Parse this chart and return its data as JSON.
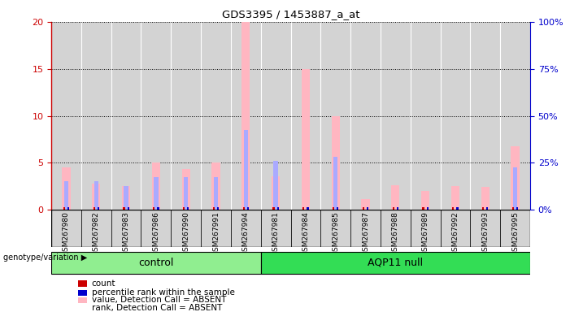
{
  "title": "GDS3395 / 1453887_a_at",
  "samples": [
    "GSM267980",
    "GSM267982",
    "GSM267983",
    "GSM267986",
    "GSM267990",
    "GSM267991",
    "GSM267994",
    "GSM267981",
    "GSM267984",
    "GSM267985",
    "GSM267987",
    "GSM267988",
    "GSM267989",
    "GSM267992",
    "GSM267993",
    "GSM267995"
  ],
  "value_pink": [
    4.5,
    2.8,
    2.5,
    5.0,
    4.3,
    5.0,
    20.0,
    3.6,
    15.0,
    10.0,
    1.1,
    2.6,
    2.0,
    2.5,
    2.4,
    6.8
  ],
  "rank_lblue_right": [
    15.0,
    15.0,
    12.5,
    17.5,
    17.5,
    17.5,
    42.5,
    26.0,
    0.0,
    28.0,
    0.0,
    0.0,
    0.0,
    0.0,
    0.0,
    22.5
  ],
  "count_red": [
    0.3,
    0.3,
    0.3,
    0.3,
    0.3,
    0.3,
    0.3,
    0.3,
    0.3,
    0.3,
    0.3,
    0.3,
    0.3,
    0.3,
    0.3,
    0.3
  ],
  "rank_blue": [
    0.3,
    0.3,
    0.3,
    0.3,
    0.3,
    0.3,
    0.3,
    0.3,
    0.3,
    0.3,
    0.3,
    0.3,
    0.3,
    0.3,
    0.3,
    0.3
  ],
  "ylim_left": [
    0,
    20
  ],
  "ylim_right": [
    0,
    100
  ],
  "yticks_left": [
    0,
    5,
    10,
    15,
    20
  ],
  "yticks_right": [
    0,
    25,
    50,
    75,
    100
  ],
  "control_count": 7,
  "aqp11_count": 9,
  "bar_bg_color": "#d3d3d3",
  "left_axis_color": "#cc0000",
  "right_axis_color": "#0000cc",
  "pink_color": "#ffb6c1",
  "lblue_color": "#aaaaff",
  "red_color": "#cc0000",
  "blue_color": "#0000cc",
  "ctrl_color": "#90ee90",
  "aqp_color": "#33dd55",
  "legend_items": [
    {
      "label": "count",
      "color": "#cc0000"
    },
    {
      "label": "percentile rank within the sample",
      "color": "#0000cc"
    },
    {
      "label": "value, Detection Call = ABSENT",
      "color": "#ffb6c1"
    },
    {
      "label": "rank, Detection Call = ABSENT",
      "color": "#aaaaff"
    }
  ]
}
